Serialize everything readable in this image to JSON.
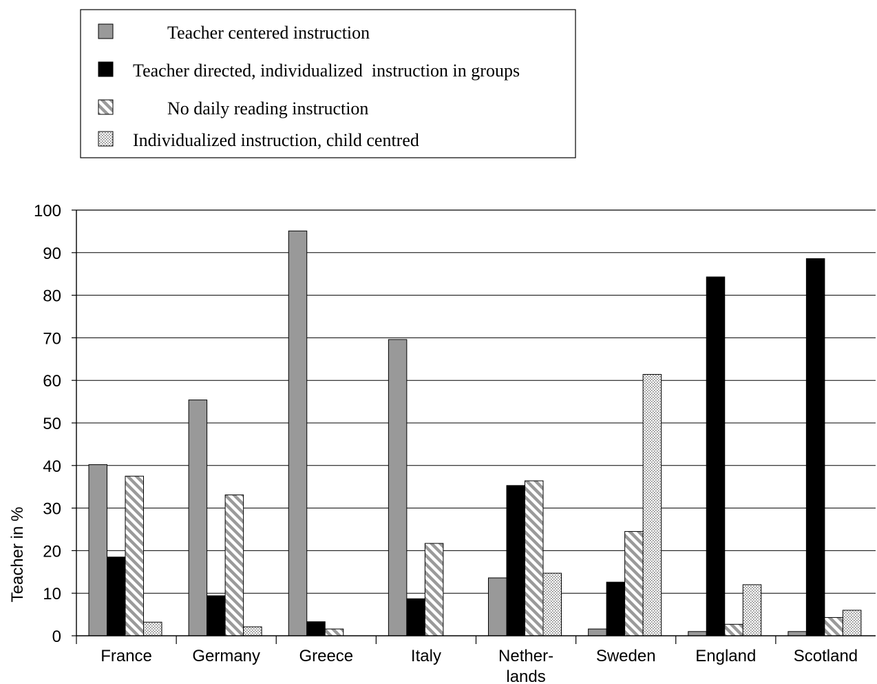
{
  "chart_data": {
    "type": "bar",
    "categories": [
      [
        "France"
      ],
      [
        "Germany"
      ],
      [
        "Greece"
      ],
      [
        "Italy"
      ],
      [
        "Nether-",
        "lands"
      ],
      [
        "Sweden"
      ],
      [
        "England"
      ],
      [
        "Scotland"
      ]
    ],
    "series": [
      {
        "name": "Teacher centered instruction",
        "pattern": "solid",
        "color": "#999999",
        "values": [
          40.2,
          55.4,
          95.1,
          69.6,
          13.6,
          1.6,
          1.0,
          1.0
        ]
      },
      {
        "name": "Teacher directed, individualized  instruction in groups",
        "pattern": "solid",
        "color": "#000000",
        "values": [
          18.5,
          9.4,
          3.3,
          8.7,
          35.3,
          12.6,
          84.3,
          88.6
        ]
      },
      {
        "name": "No daily reading instruction",
        "pattern": "diagonal-hatch",
        "color": "#9a9a9a",
        "values": [
          37.5,
          33.1,
          1.6,
          21.7,
          36.4,
          24.5,
          2.7,
          4.3
        ]
      },
      {
        "name": "Individualized instruction, child centred",
        "pattern": "dots",
        "color": "#9a9a9a",
        "values": [
          3.2,
          2.1,
          0,
          0,
          14.7,
          61.4,
          12.0,
          6.0
        ]
      }
    ],
    "ylabel": "Teacher  in %",
    "xlabel": "",
    "ylim": [
      0,
      100
    ],
    "yticks": [
      "0",
      "10",
      "20",
      "30",
      "40",
      "50",
      "60",
      "70",
      "80",
      "90",
      "100"
    ],
    "grid": true,
    "legend_position": "top-left, above plot"
  }
}
